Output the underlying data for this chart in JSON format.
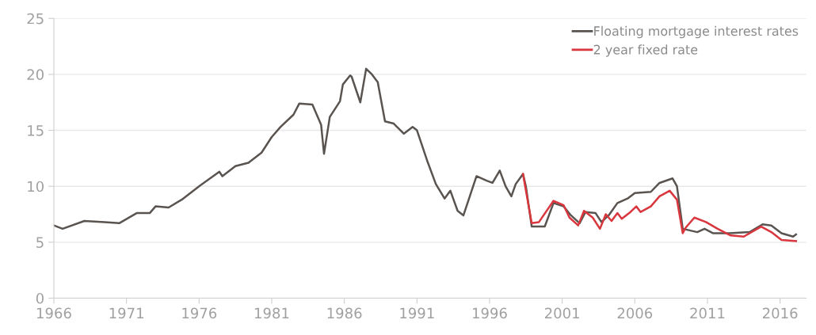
{
  "chart_data": {
    "type": "line",
    "xlim": [
      1966,
      2017.8
    ],
    "xticks": [
      1966,
      1971,
      1976,
      1981,
      1986,
      1991,
      1996,
      2001,
      2006,
      2011,
      2016
    ],
    "ylim": [
      0,
      25
    ],
    "yticks": [
      0,
      5,
      10,
      15,
      20,
      25
    ],
    "grid": "y",
    "legend": "top right",
    "series": [
      {
        "name": "Floating mortgage interest rates",
        "color": "#5a5450",
        "x": [
          1966.0,
          1966.6,
          1968.1,
          1969.5,
          1970.5,
          1971.7,
          1972.6,
          1973.0,
          1973.9,
          1974.8,
          1976.0,
          1977.4,
          1977.6,
          1978.5,
          1979.4,
          1980.3,
          1981.0,
          1981.6,
          1982.5,
          1982.9,
          1983.8,
          1984.4,
          1984.6,
          1985.0,
          1985.7,
          1985.9,
          1986.4,
          1986.5,
          1987.1,
          1987.5,
          1987.9,
          1988.3,
          1988.8,
          1989.4,
          1990.1,
          1990.7,
          1991.0,
          1991.7,
          1992.3,
          1992.9,
          1993.3,
          1993.8,
          1994.2,
          1995.1,
          1995.8,
          1996.2,
          1996.7,
          1997.1,
          1997.5,
          1997.8,
          1998.3,
          1998.5,
          1998.9,
          1999.8,
          2000.4,
          2001.1,
          2001.6,
          2002.2,
          2002.6,
          2003.3,
          2003.7,
          2004.2,
          2004.8,
          2005.5,
          2006.0,
          2007.1,
          2007.7,
          2008.6,
          2008.9,
          2009.3,
          2010.3,
          2010.8,
          2011.4,
          2012.5,
          2013.9,
          2014.8,
          2015.4,
          2016.1,
          2016.9,
          2017.1
        ],
        "values": [
          6.5,
          6.2,
          6.9,
          6.8,
          6.7,
          7.6,
          7.6,
          8.2,
          8.1,
          8.8,
          10.0,
          11.3,
          10.9,
          11.8,
          12.1,
          13.0,
          14.4,
          15.3,
          16.4,
          17.4,
          17.3,
          15.5,
          12.9,
          16.2,
          17.6,
          19.1,
          19.9,
          19.8,
          17.5,
          20.5,
          20.0,
          19.3,
          15.8,
          15.6,
          14.7,
          15.3,
          15.0,
          12.3,
          10.2,
          8.9,
          9.6,
          7.8,
          7.4,
          10.9,
          10.5,
          10.3,
          11.4,
          10.0,
          9.1,
          10.2,
          11.1,
          10.0,
          6.4,
          6.4,
          8.5,
          8.2,
          7.4,
          6.7,
          7.7,
          7.6,
          6.8,
          7.4,
          8.5,
          8.9,
          9.4,
          9.5,
          10.3,
          10.7,
          10.0,
          6.2,
          5.9,
          6.2,
          5.8,
          5.8,
          5.9,
          6.6,
          6.5,
          5.8,
          5.5,
          5.7
        ]
      },
      {
        "name": "2 year fixed rate",
        "color": "#d9363e",
        "x": [
          1998.3,
          1998.9,
          1999.4,
          2000.4,
          2001.1,
          2001.5,
          2002.1,
          2002.5,
          2003.1,
          2003.6,
          2004.0,
          2004.4,
          2004.8,
          2005.1,
          2005.7,
          2006.1,
          2006.4,
          2007.1,
          2007.7,
          2008.4,
          2008.9,
          2009.3,
          2009.5,
          2010.1,
          2010.9,
          2011.7,
          2012.6,
          2013.5,
          2014.7,
          2015.4,
          2016.1,
          2017.1
        ],
        "values": [
          11.1,
          6.7,
          6.8,
          8.7,
          8.3,
          7.2,
          6.5,
          7.8,
          7.2,
          6.2,
          7.5,
          6.9,
          7.6,
          7.1,
          7.7,
          8.2,
          7.7,
          8.2,
          9.1,
          9.6,
          8.8,
          5.8,
          6.3,
          7.2,
          6.8,
          6.2,
          5.6,
          5.5,
          6.4,
          5.9,
          5.2,
          5.1
        ]
      }
    ]
  }
}
